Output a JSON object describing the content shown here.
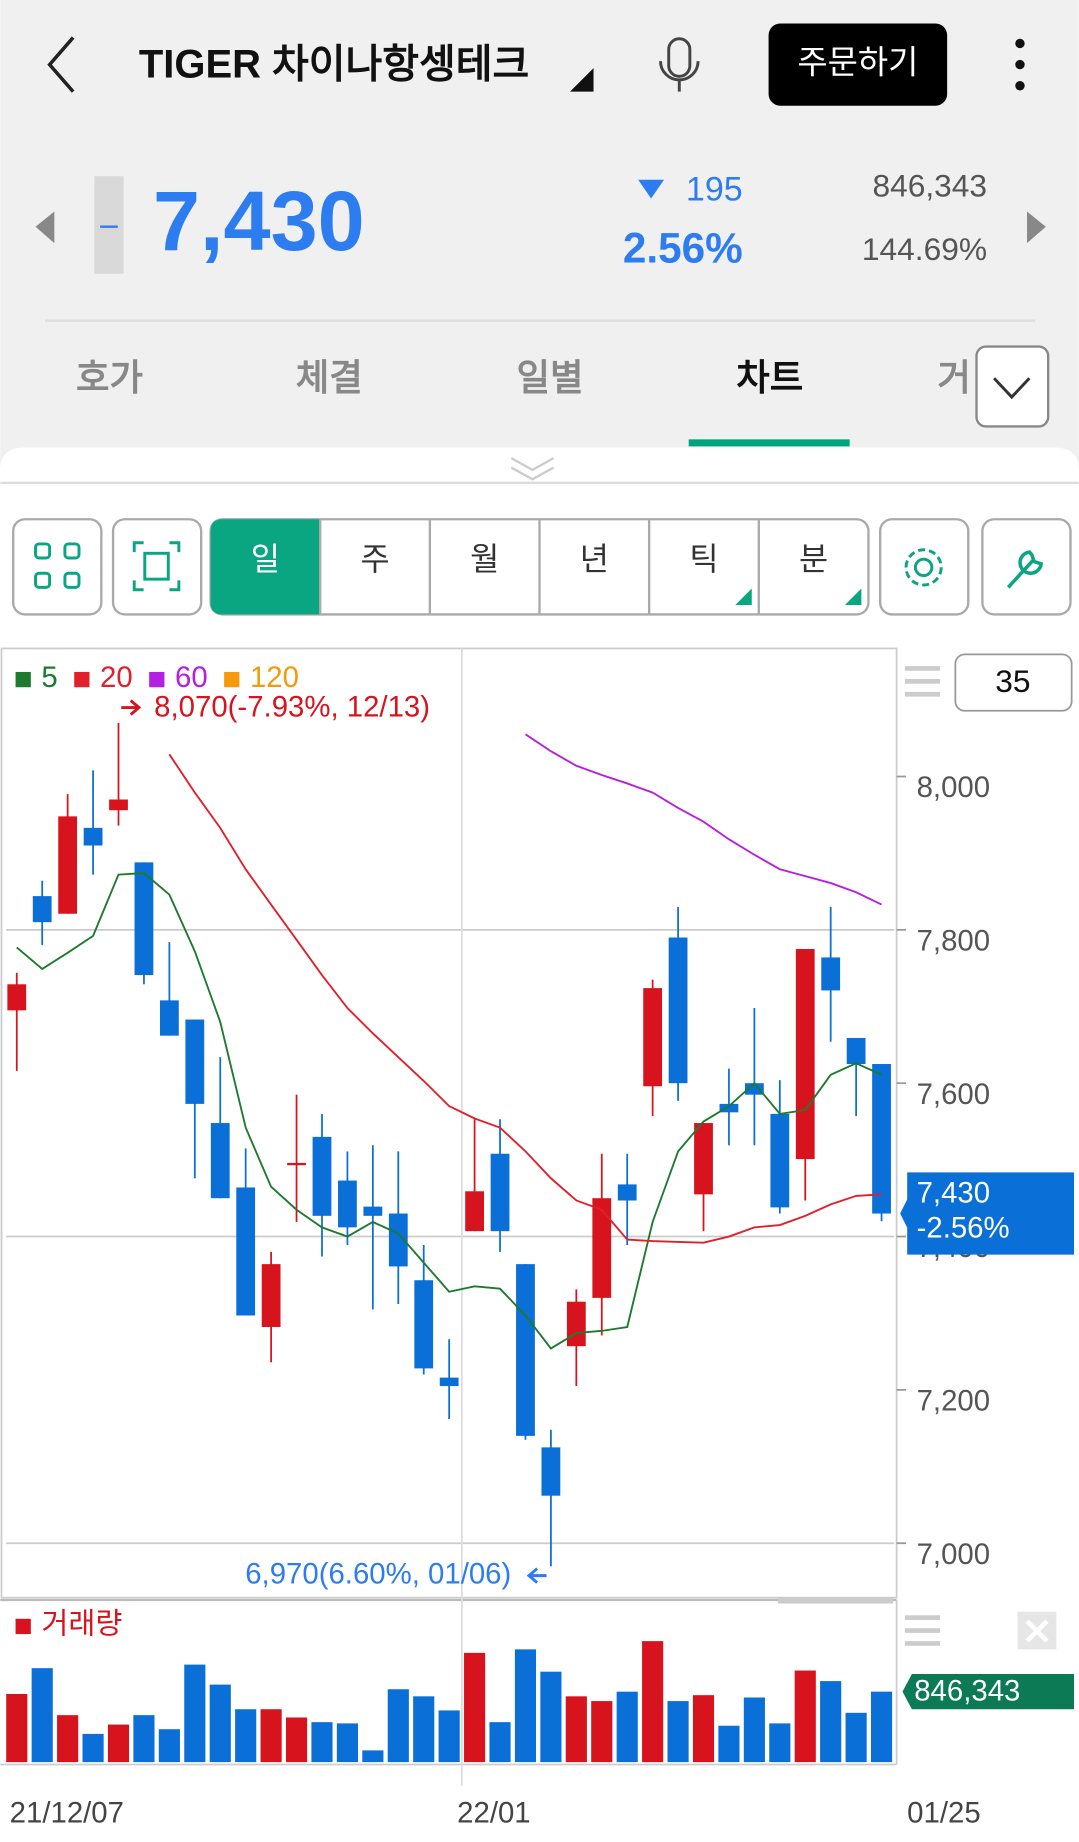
{
  "header": {
    "title": "TIGER 차이나항셍테크",
    "order_button": "주문하기"
  },
  "quote": {
    "price": "7,430",
    "change": "195",
    "change_pct": "2.56%",
    "volume": "846,343",
    "turnover": "144.69%"
  },
  "tabs": [
    "호가",
    "체결",
    "일별",
    "차트",
    "거"
  ],
  "periods": [
    "일",
    "주",
    "월",
    "년",
    "틱",
    "분"
  ],
  "chart_data": {
    "type": "candlestick",
    "categories": [
      "21/12/07",
      null,
      null,
      null,
      null,
      null,
      null,
      null,
      null,
      null,
      null,
      null,
      null,
      null,
      null,
      null,
      null,
      null,
      "22/01",
      null,
      null,
      null,
      null,
      null,
      null,
      null,
      null,
      null,
      null,
      null,
      null,
      null,
      null,
      null,
      "01/25"
    ],
    "open": [
      7695,
      7844,
      7821,
      7933,
      7956,
      7888,
      7708,
      7683,
      7548,
      7464,
      7282,
      7493,
      7530,
      7473,
      7439,
      7430,
      7343,
      7216,
      7407,
      7508,
      7364,
      7125,
      7257,
      7320,
      7468,
      7596,
      7790,
      7455,
      7573,
      7600,
      7560,
      7501,
      7764,
      7659,
      7625
    ],
    "high": [
      7744,
      7864,
      7977,
      8008,
      8070,
      7888,
      7784,
      7683,
      7634,
      7515,
      7380,
      7585,
      7560,
      7511,
      7519,
      7511,
      7389,
      7266,
      7553,
      7553,
      7364,
      7148,
      7331,
      7508,
      7508,
      7735,
      7830,
      7548,
      7619,
      7698,
      7604,
      7775,
      7830,
      7659,
      7625
    ],
    "low": [
      7616,
      7780,
      7821,
      7872,
      7936,
      7729,
      7662,
      7476,
      7450,
      7297,
      7236,
      7419,
      7374,
      7389,
      7305,
      7312,
      7220,
      7162,
      7407,
      7380,
      7135,
      6970,
      7205,
      7271,
      7389,
      7557,
      7577,
      7407,
      7519,
      7519,
      7430,
      7447,
      7654,
      7557,
      7420
    ],
    "close": [
      7729,
      7810,
      7948,
      7910,
      7970,
      7741,
      7662,
      7573,
      7450,
      7297,
      7364,
      7496,
      7427,
      7412,
      7427,
      7361,
      7228,
      7205,
      7459,
      7407,
      7140,
      7062,
      7315,
      7450,
      7447,
      7724,
      7600,
      7548,
      7562,
      7585,
      7438,
      7775,
      7721,
      7625,
      7430
    ],
    "up_color": "#d7141e",
    "down_color": "#0a6fd6",
    "moving_averages": [
      {
        "name": "5",
        "color": "#1e7a2e",
        "values": [
          7777,
          7749,
          7770,
          7792,
          7872,
          7874,
          7846,
          7772,
          7680,
          7542,
          7465,
          7435,
          7412,
          7400,
          7419,
          7404,
          7366,
          7328,
          7335,
          7332,
          7297,
          7254,
          7274,
          7277,
          7282,
          7419,
          7511,
          7550,
          7570,
          7600,
          7560,
          7565,
          7611,
          7626,
          7611
        ]
      },
      {
        "name": "20",
        "color": "#e0202a",
        "values": [
          null,
          null,
          null,
          null,
          null,
          null,
          8029,
          7979,
          7933,
          7879,
          7833,
          7787,
          7741,
          7698,
          7665,
          7634,
          7603,
          7570,
          7554,
          7542,
          7511,
          7476,
          7447,
          7435,
          7396,
          7394,
          7393,
          7392,
          7400,
          7412,
          7415,
          7427,
          7442,
          7453,
          7455
        ]
      },
      {
        "name": "60",
        "color": "#b520e0",
        "values": [
          null,
          null,
          null,
          null,
          null,
          null,
          null,
          null,
          null,
          null,
          null,
          null,
          null,
          null,
          null,
          null,
          null,
          null,
          null,
          null,
          8055,
          8033,
          8014,
          8002,
          7991,
          7979,
          7959,
          7941,
          7918,
          7898,
          7879,
          7870,
          7861,
          7849,
          7833
        ]
      },
      {
        "name": "120",
        "color": "#f59a0c",
        "values": [
          null,
          null,
          null,
          null,
          null,
          null,
          null,
          null,
          null,
          null,
          null,
          null,
          null,
          null,
          null,
          null,
          null,
          null,
          null,
          null,
          null,
          null,
          null,
          null,
          null,
          null,
          null,
          null,
          null,
          null,
          null,
          null,
          null,
          null,
          null
        ]
      }
    ],
    "ylim": [
      6929,
      8167
    ],
    "yticks": [
      {
        "value": 7000,
        "label": "7,000"
      },
      {
        "value": 7200,
        "label": "7,200"
      },
      {
        "value": 7400,
        "label": "7,400"
      },
      {
        "value": 7600,
        "label": "7,600"
      },
      {
        "value": 7800,
        "label": "7,800"
      },
      {
        "value": 8000,
        "label": "8,000"
      }
    ],
    "grid": true,
    "annotations": [
      {
        "text": "8,070(-7.93%, 12/13)",
        "value": 8070
      },
      {
        "text": "6,970(6.60%, 01/06)",
        "value": 6970
      }
    ],
    "current_label": "7,430",
    "current_change_label": "-2.56%",
    "period_count": "35",
    "volume": {
      "name": "거래량",
      "color": "#d7141e",
      "values": [
        818000,
        1128000,
        564000,
        339000,
        451000,
        564000,
        395000,
        1171000,
        931000,
        635000,
        635000,
        536000,
        480000,
        465000,
        141000,
        875000,
        790000,
        621000,
        1312000,
        480000,
        1354000,
        1086000,
        790000,
        733000,
        846000,
        1453000,
        733000,
        804000,
        437000,
        776000,
        465000,
        1100000,
        973000,
        592000,
        846343
      ],
      "ylim": [
        0,
        1834000
      ],
      "last_label": "846,343",
      "label_color": "#0b7a55"
    }
  }
}
